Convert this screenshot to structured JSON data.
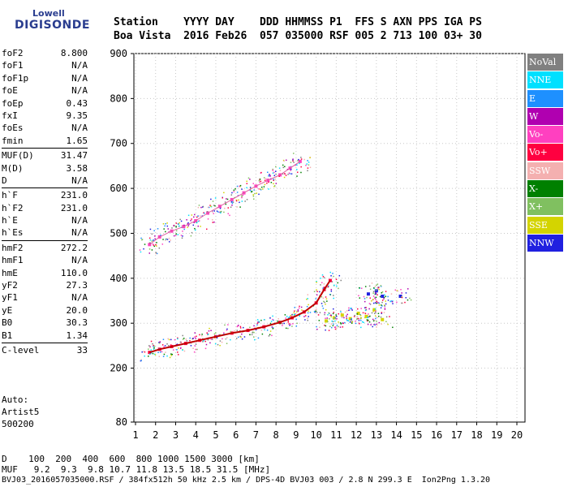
{
  "logo": {
    "line1": "Lowell",
    "line2": "DIGISONDE"
  },
  "header": {
    "line1": "Station    YYYY DAY    DDD HHMMSS P1  FFS S AXN PPS IGA PS",
    "line2": "Boa Vista  2016 Feb26  057 035000 RSF 005 2 713 100 03+ 30"
  },
  "params": [
    {
      "group": [
        {
          "k": "foF2",
          "v": "8.800"
        },
        {
          "k": "foF1",
          "v": "N/A"
        },
        {
          "k": "foF1p",
          "v": "N/A"
        },
        {
          "k": "foE",
          "v": "N/A"
        },
        {
          "k": "foEp",
          "v": "0.43"
        },
        {
          "k": "fxI",
          "v": "9.35"
        },
        {
          "k": "foEs",
          "v": "N/A"
        },
        {
          "k": "fmin",
          "v": "1.65"
        }
      ]
    },
    {
      "group": [
        {
          "k": "MUF(D)",
          "v": "31.47"
        },
        {
          "k": "M(D)",
          "v": "3.58"
        },
        {
          "k": "D",
          "v": "N/A"
        }
      ]
    },
    {
      "group": [
        {
          "k": "h`F",
          "v": "231.0"
        },
        {
          "k": "h`F2",
          "v": "231.0"
        },
        {
          "k": "h`E",
          "v": "N/A"
        },
        {
          "k": "h`Es",
          "v": "N/A"
        }
      ]
    },
    {
      "group": [
        {
          "k": "hmF2",
          "v": "272.2"
        },
        {
          "k": "hmF1",
          "v": "N/A"
        },
        {
          "k": "hmE",
          "v": "110.0"
        },
        {
          "k": "yF2",
          "v": "27.3"
        },
        {
          "k": "yF1",
          "v": "N/A"
        },
        {
          "k": "yE",
          "v": "20.0"
        },
        {
          "k": "B0",
          "v": "30.3"
        },
        {
          "k": "B1",
          "v": "1.34"
        }
      ]
    },
    {
      "group": [
        {
          "k": "C-level",
          "v": "33"
        }
      ]
    }
  ],
  "auto": {
    "l1": "Auto:",
    "l2": "Artist5",
    "l3": "500200"
  },
  "footer": {
    "d_line": "D    100  200  400  600  800 1000 1500 3000 [km]",
    "muf_line": "MUF   9.2  9.3  9.8 10.7 11.8 13.5 18.5 31.5 [MHz]",
    "file_line": "BVJ03_2016057035000.RSF / 384fx512h 50 kHz 2.5 km / DPS-4D BVJ03 003 / 2.8 N 299.3 E  Ion2Png 1.3.20"
  },
  "legend": [
    {
      "label": "NoVal",
      "color": "#808080"
    },
    {
      "label": "NNE",
      "color": "#00e0ff"
    },
    {
      "label": "E",
      "color": "#1e90ff"
    },
    {
      "label": "W",
      "color": "#b000b0"
    },
    {
      "label": "Vo-",
      "color": "#ff40c0"
    },
    {
      "label": "Vo+",
      "color": "#ff0040"
    },
    {
      "label": "SSW",
      "color": "#f4b0b0"
    },
    {
      "label": "X-",
      "color": "#008000"
    },
    {
      "label": "X+",
      "color": "#80c060"
    },
    {
      "label": "SSE",
      "color": "#d4d400"
    },
    {
      "label": "NNW",
      "color": "#2020e0"
    }
  ],
  "chart_data": {
    "type": "scatter",
    "x_ticks": [
      1,
      2,
      3,
      4,
      5,
      6,
      7,
      8,
      9,
      10,
      11,
      12,
      13,
      14,
      15,
      16,
      17,
      18,
      19,
      20
    ],
    "y_ticks": [
      80,
      200,
      300,
      400,
      500,
      600,
      700,
      800,
      900
    ],
    "xlim": [
      1,
      20
    ],
    "ylim": [
      80,
      900
    ],
    "grid": true,
    "series": [
      {
        "name": "Vo+",
        "x": [
          1.7,
          2.2,
          2.8,
          3.5,
          4.2,
          5.0,
          5.8,
          6.6,
          7.4,
          8.2,
          8.8,
          9.4,
          10.0,
          10.4,
          10.7
        ],
        "y": [
          235,
          242,
          248,
          255,
          262,
          270,
          278,
          284,
          292,
          302,
          312,
          325,
          345,
          375,
          395
        ]
      },
      {
        "name": "Vo-",
        "x": [
          1.7,
          2.2,
          2.8,
          3.4,
          4.0,
          4.6,
          5.2,
          5.8,
          6.4,
          7.0,
          7.6,
          8.2,
          8.7,
          9.2
        ],
        "y": [
          475,
          492,
          505,
          515,
          528,
          545,
          560,
          575,
          590,
          605,
          618,
          630,
          645,
          660
        ]
      },
      {
        "name": "SSE",
        "x": [
          10.5,
          10.9,
          11.3,
          11.7,
          12.1,
          12.5,
          12.9,
          13.3
        ],
        "y": [
          305,
          312,
          318,
          310,
          322,
          315,
          330,
          308
        ]
      },
      {
        "name": "NNW",
        "x": [
          12.6,
          13.0,
          13.3,
          14.2
        ],
        "y": [
          365,
          372,
          360,
          360
        ]
      }
    ]
  }
}
